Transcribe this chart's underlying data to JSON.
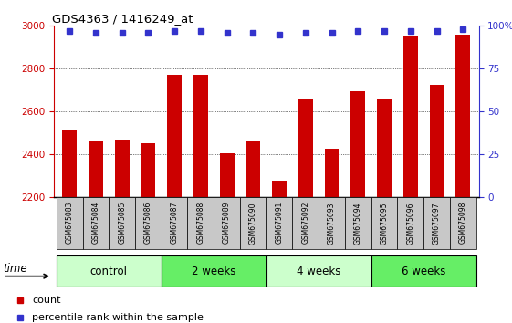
{
  "title": "GDS4363 / 1416249_at",
  "samples": [
    "GSM675083",
    "GSM675084",
    "GSM675085",
    "GSM675086",
    "GSM675087",
    "GSM675088",
    "GSM675089",
    "GSM675090",
    "GSM675091",
    "GSM675092",
    "GSM675093",
    "GSM675094",
    "GSM675095",
    "GSM675096",
    "GSM675097",
    "GSM675098"
  ],
  "counts": [
    2510,
    2460,
    2470,
    2450,
    2770,
    2770,
    2405,
    2465,
    2275,
    2660,
    2425,
    2695,
    2660,
    2950,
    2725,
    2960
  ],
  "percentile_ranks": [
    97,
    96,
    96,
    96,
    97,
    97,
    96,
    96,
    95,
    96,
    96,
    97,
    97,
    97,
    97,
    98
  ],
  "bar_color": "#cc0000",
  "dot_color": "#3333cc",
  "ylim_left": [
    2200,
    3000
  ],
  "ylim_right": [
    0,
    100
  ],
  "yticks_left": [
    2200,
    2400,
    2600,
    2800,
    3000
  ],
  "yticks_right": [
    0,
    25,
    50,
    75,
    100
  ],
  "ytick_labels_right": [
    "0",
    "25",
    "50",
    "75",
    "100%"
  ],
  "groups": [
    {
      "label": "control",
      "start": 0,
      "end": 4,
      "color": "#ccffcc"
    },
    {
      "label": "2 weeks",
      "start": 4,
      "end": 8,
      "color": "#66ee66"
    },
    {
      "label": "4 weeks",
      "start": 8,
      "end": 12,
      "color": "#ccffcc"
    },
    {
      "label": "6 weeks",
      "start": 12,
      "end": 16,
      "color": "#66ee66"
    }
  ],
  "tick_area_color": "#c8c8c8",
  "legend_count_color": "#cc0000",
  "legend_dot_color": "#3333cc",
  "legend_count_label": "count",
  "legend_percentile_label": "percentile rank within the sample",
  "time_label": "time"
}
